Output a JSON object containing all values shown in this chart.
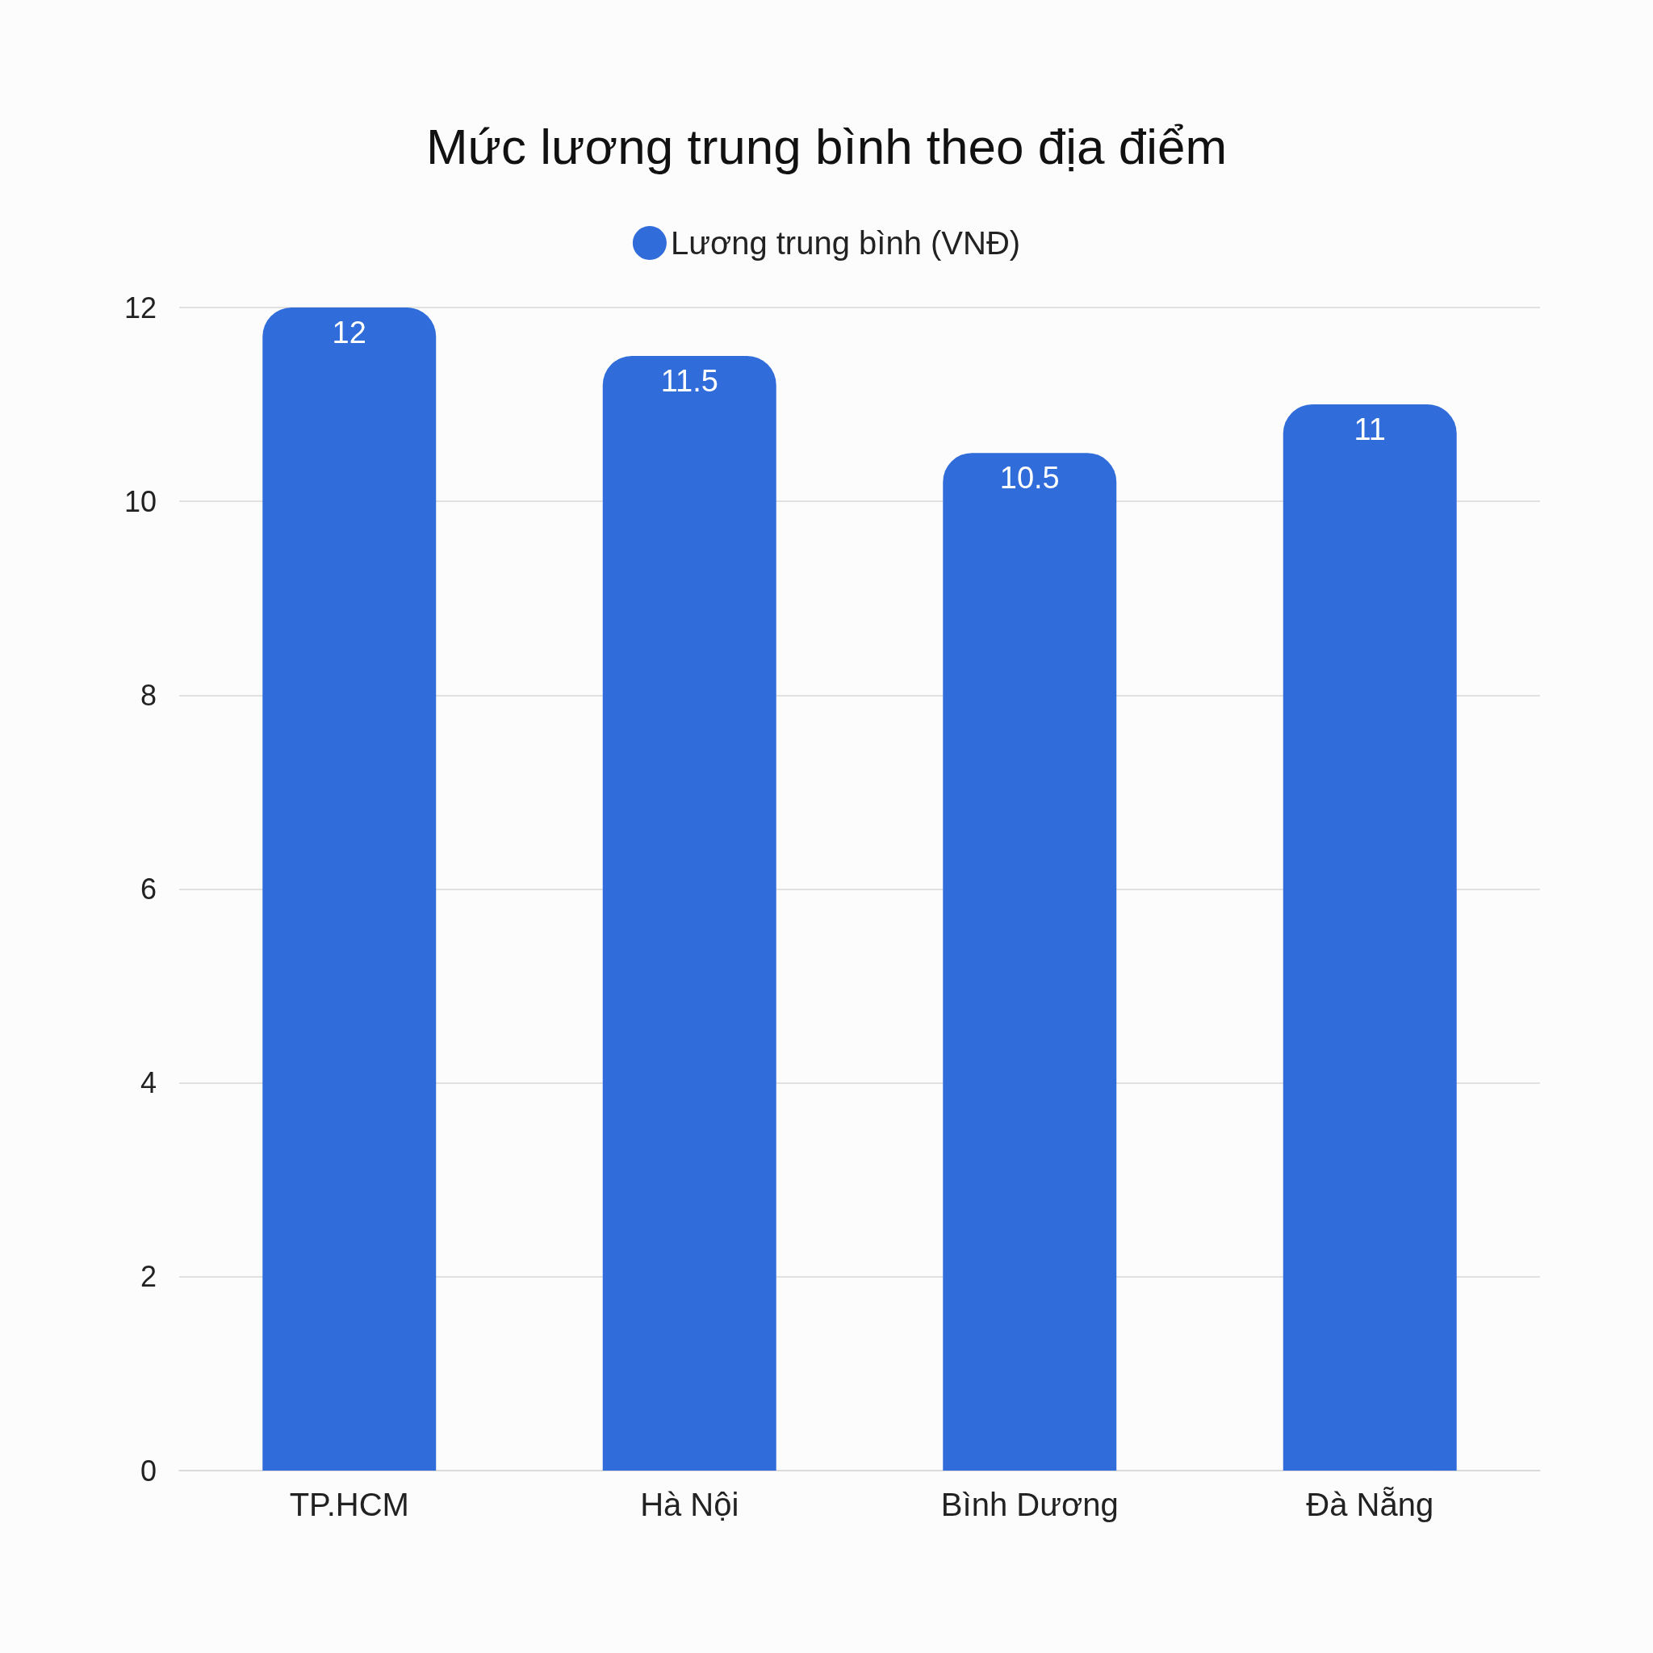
{
  "chart_data": {
    "type": "bar",
    "title": "Mức lương trung bình theo địa điểm",
    "categories": [
      "TP.HCM",
      "Hà Nội",
      "Bình Dương",
      "Đà Nẵng"
    ],
    "series": [
      {
        "name": "Lương trung bình (VNĐ)",
        "color": "#306ddb",
        "values": [
          12,
          11.5,
          10.5,
          11
        ]
      }
    ],
    "ylim": [
      0,
      12
    ],
    "yticks": [
      0,
      2,
      4,
      6,
      8,
      10,
      12
    ],
    "grid": "y",
    "legend": "top",
    "data_labels": true
  }
}
